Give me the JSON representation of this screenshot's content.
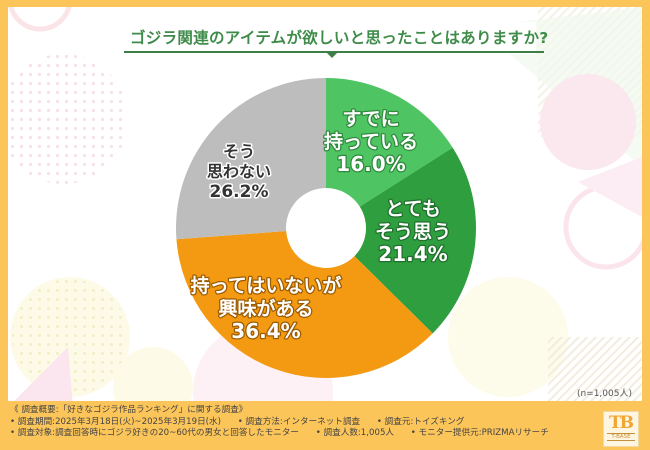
{
  "header": {
    "title": "ゴジラ関連のアイテムが欲しいと思ったことはありますか?"
  },
  "chart_data": {
    "type": "pie",
    "style": "donut",
    "title": "ゴジラ関連のアイテムが欲しいと思ったことはありますか?",
    "start_angle": "top",
    "direction": "clockwise",
    "slices": [
      {
        "label_lines": [
          "すでに",
          "持っている"
        ],
        "value": 16.0,
        "value_label": "16.0%",
        "color": "#4fc463",
        "text_stroke": "#2e8a3b"
      },
      {
        "label_lines": [
          "とても",
          "そう思う"
        ],
        "value": 21.4,
        "value_label": "21.4%",
        "color": "#2e9e3f",
        "text_stroke": "#1f6f2b"
      },
      {
        "label_lines": [
          "持ってはいないが",
          "興味がある"
        ],
        "value": 36.4,
        "value_label": "36.4%",
        "color": "#f39a12",
        "text_stroke": "#9a5a00"
      },
      {
        "label_lines": [
          "そう",
          "思わない"
        ],
        "value": 26.2,
        "value_label": "26.2%",
        "color": "#bdbdbd",
        "text_stroke": "#ffffff",
        "text_fill": "#333333"
      }
    ],
    "sample_note": "(n=1,005人)"
  },
  "footer": {
    "heading": "《 調査概要:「好きなゴジラ作品ランキング」に関する調査》",
    "period": "• 調査期間:2025年3月18日(火)~2025年3月19日(水)",
    "method": "• 調査方法:インターネット調査",
    "source": "• 調査元:トイズキング",
    "target": "• 調査対象:調査回答時にゴジラ好きの20~60代の男女と回答したモニター",
    "count": "• 調査人数:1,005人",
    "provider": "• モニター提供元:PRIZMAリサーチ"
  },
  "logo": {
    "mark": "TB",
    "text": "T-BASE"
  },
  "colors": {
    "frame": "#fcc55a",
    "title_green": "#3f8c4a"
  }
}
